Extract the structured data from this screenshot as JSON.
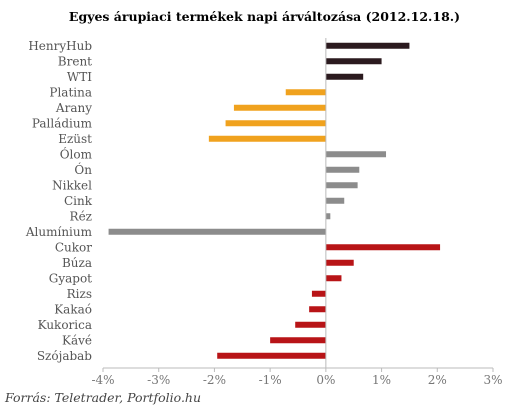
{
  "chart_data": {
    "type": "bar",
    "orientation": "horizontal",
    "title": "Egyes árupiaci termékek napi árváltozása (2012.12.18.)",
    "source": "Forrás: Teletrader, Portfolio.hu",
    "categories": [
      "HenryHub",
      "Brent",
      "WTI",
      "Platina",
      "Arany",
      "Palládium",
      "Ezüst",
      "Ólom",
      "Ón",
      "Nikkel",
      "Cink",
      "Réz",
      "Alumínium",
      "Cukor",
      "Búza",
      "Gyapot",
      "Rizs",
      "Kakaó",
      "Kukorica",
      "Kávé",
      "Szójabab"
    ],
    "values": [
      1.5,
      1.0,
      0.67,
      -0.72,
      -1.65,
      -1.8,
      -2.1,
      1.08,
      0.6,
      0.57,
      0.33,
      0.08,
      -3.9,
      2.05,
      0.5,
      0.28,
      -0.25,
      -0.3,
      -0.55,
      -1.0,
      -1.95
    ],
    "colors": [
      "#2b1a1f",
      "#2b1a1f",
      "#2b1a1f",
      "#f0a21e",
      "#f0a21e",
      "#f0a21e",
      "#f0a21e",
      "#8c8c8c",
      "#8c8c8c",
      "#8c8c8c",
      "#8c8c8c",
      "#8c8c8c",
      "#8c8c8c",
      "#b81417",
      "#b81417",
      "#b81417",
      "#b81417",
      "#b81417",
      "#b81417",
      "#b81417",
      "#b81417"
    ],
    "xticks": [
      "-4%",
      "-3%",
      "-2%",
      "-1%",
      "0%",
      "1%",
      "2%",
      "3%"
    ],
    "xlim": [
      -4,
      3
    ],
    "unit": "%",
    "grid": false,
    "legend": "none"
  }
}
